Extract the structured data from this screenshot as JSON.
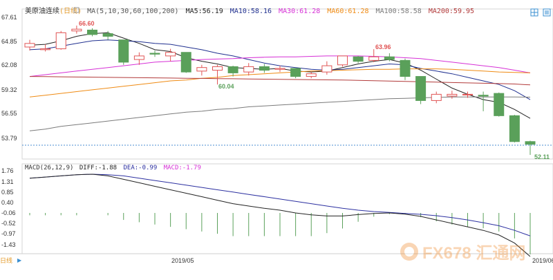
{
  "header": {
    "symbol": "美原油连续",
    "period": "日线",
    "ma_params": "MA(5,10,30,60,100,200)",
    "ma_values": [
      {
        "label": "MA5:56.19",
        "color": "#222222"
      },
      {
        "label": "MA10:58.16",
        "color": "#1f2f8f"
      },
      {
        "label": "MA30:61.28",
        "color": "#d62fd6"
      },
      {
        "label": "MA60:61.28",
        "color": "#ef8a12"
      },
      {
        "label": "MA100:58.58",
        "color": "#7a7a7a"
      },
      {
        "label": "MA200:59.95",
        "color": "#b23a3a"
      }
    ]
  },
  "price_axis": {
    "ticks": [
      "67.61",
      "64.85",
      "62.08",
      "59.32",
      "56.55",
      "53.79"
    ]
  },
  "price_range": [
    51.8,
    67.61
  ],
  "annotations": {
    "high": "66.60",
    "high2": "63.96",
    "low": "60.04",
    "last": "52.11"
  },
  "macd": {
    "label": "MACD(26,12,9)",
    "diff": "DIFF:-1.88",
    "dea": "DEA:-0.99",
    "macd": "MACD:-1.79",
    "ticks": [
      "1.76",
      "1.31",
      "0.85",
      "0.40",
      "-0.06",
      "-0.52",
      "-0.97",
      "-1.43"
    ],
    "range": [
      -1.7,
      1.85
    ]
  },
  "xaxis": {
    "period_tab": "日线",
    "labels": [
      "2019/05",
      "2019/06"
    ]
  },
  "watermark": "FX678 汇通网",
  "colors": {
    "up": "#e05454",
    "down": "#5aa05a",
    "diff": "#222222",
    "dea": "#2b2fa0"
  },
  "chart_data": {
    "type": "candlestick",
    "title": "美原油连续 日线",
    "candles": [
      [
        64.2,
        64.6,
        63.8,
        65.0
      ],
      [
        63.9,
        64.0,
        63.7,
        64.5
      ],
      [
        64.0,
        65.8,
        63.9,
        66.0
      ],
      [
        66.0,
        66.2,
        65.7,
        66.6
      ],
      [
        66.1,
        65.6,
        65.4,
        66.3
      ],
      [
        65.7,
        65.4,
        65.0,
        66.0
      ],
      [
        65.0,
        62.5,
        62.2,
        65.0
      ],
      [
        62.8,
        63.2,
        62.2,
        63.6
      ],
      [
        63.5,
        63.4,
        63.1,
        63.8
      ],
      [
        63.2,
        63.6,
        62.6,
        64.0
      ],
      [
        63.6,
        61.4,
        61.3,
        63.6
      ],
      [
        61.5,
        61.9,
        61.0,
        62.2
      ],
      [
        61.6,
        62.0,
        60.0,
        62.2
      ],
      [
        62.0,
        61.3,
        60.9,
        62.1
      ],
      [
        61.4,
        62.0,
        61.0,
        62.4
      ],
      [
        62.0,
        61.6,
        61.3,
        62.3
      ],
      [
        61.7,
        61.8,
        61.4,
        62.1
      ],
      [
        61.8,
        60.9,
        60.7,
        61.8
      ],
      [
        60.9,
        61.2,
        60.7,
        61.4
      ],
      [
        61.4,
        62.1,
        61.1,
        62.6
      ],
      [
        62.2,
        63.2,
        62.0,
        63.2
      ],
      [
        63.1,
        62.6,
        62.4,
        63.2
      ],
      [
        62.7,
        63.1,
        62.5,
        63.96
      ],
      [
        63.1,
        62.8,
        62.6,
        63.5
      ],
      [
        62.7,
        60.9,
        60.5,
        62.9
      ],
      [
        60.9,
        58.2,
        57.8,
        60.9
      ],
      [
        58.2,
        58.9,
        57.9,
        59.2
      ],
      [
        58.7,
        58.9,
        58.4,
        59.3
      ],
      [
        58.9,
        58.9,
        58.5,
        59.2
      ],
      [
        58.8,
        58.7,
        57.0,
        59.2
      ],
      [
        59.0,
        56.5,
        56.4,
        59.1
      ],
      [
        56.5,
        53.6,
        53.5,
        56.6
      ],
      [
        53.6,
        53.3,
        52.11,
        53.7
      ]
    ],
    "ma": {
      "MA5": [
        64.4,
        64.5,
        64.9,
        65.4,
        65.7,
        65.8,
        65.2,
        64.6,
        63.9,
        63.7,
        63.0,
        62.6,
        62.3,
        61.9,
        61.8,
        61.7,
        61.8,
        61.5,
        61.4,
        61.5,
        61.9,
        62.3,
        62.6,
        62.8,
        62.4,
        61.6,
        60.6,
        59.6,
        58.9,
        58.3,
        58.0,
        57.2,
        56.2
      ],
      "MA10": [
        63.9,
        64.0,
        64.3,
        64.6,
        64.9,
        65.0,
        64.9,
        64.8,
        64.6,
        64.5,
        64.2,
        63.9,
        63.5,
        63.2,
        62.8,
        62.4,
        62.1,
        61.9,
        61.7,
        61.6,
        61.7,
        61.9,
        62.1,
        62.3,
        62.2,
        61.8,
        61.5,
        61.2,
        60.8,
        60.4,
        60.0,
        59.3,
        58.3
      ],
      "MA30": [
        60.9,
        61.1,
        61.3,
        61.5,
        61.7,
        61.9,
        62.1,
        62.3,
        62.5,
        62.6,
        62.7,
        62.8,
        62.85,
        62.9,
        63.0,
        63.05,
        63.1,
        63.1,
        63.15,
        63.2,
        63.2,
        63.2,
        63.15,
        63.1,
        63.0,
        62.9,
        62.7,
        62.5,
        62.3,
        62.1,
        61.9,
        61.6,
        61.3
      ],
      "MA60": [
        58.6,
        58.8,
        59.0,
        59.2,
        59.4,
        59.6,
        59.8,
        60.0,
        60.2,
        60.4,
        60.5,
        60.7,
        60.8,
        61.0,
        61.1,
        61.2,
        61.3,
        61.4,
        61.5,
        61.55,
        61.6,
        61.65,
        61.7,
        61.7,
        61.75,
        61.75,
        61.75,
        61.7,
        61.6,
        61.5,
        61.4,
        61.35,
        61.3
      ],
      "MA100": [
        54.8,
        55.0,
        55.3,
        55.5,
        55.7,
        55.9,
        56.1,
        56.3,
        56.5,
        56.7,
        56.9,
        57.0,
        57.2,
        57.3,
        57.5,
        57.6,
        57.7,
        57.8,
        57.9,
        58.0,
        58.1,
        58.2,
        58.3,
        58.4,
        58.45,
        58.5,
        58.55,
        58.6,
        58.6,
        58.6,
        58.6,
        58.6,
        58.58
      ],
      "MA200": [
        60.9,
        60.88,
        60.86,
        60.84,
        60.82,
        60.8,
        60.78,
        60.76,
        60.74,
        60.72,
        60.7,
        60.68,
        60.66,
        60.64,
        60.62,
        60.6,
        60.58,
        60.56,
        60.54,
        60.52,
        60.5,
        60.46,
        60.42,
        60.38,
        60.34,
        60.3,
        60.26,
        60.22,
        60.18,
        60.14,
        60.1,
        60.05,
        59.95
      ]
    },
    "macd": {
      "diff": [
        1.5,
        1.55,
        1.6,
        1.65,
        1.67,
        1.6,
        1.45,
        1.3,
        1.15,
        1.0,
        0.85,
        0.7,
        0.55,
        0.4,
        0.3,
        0.2,
        0.12,
        0.0,
        -0.08,
        -0.13,
        -0.13,
        -0.07,
        -0.02,
        0.0,
        -0.05,
        -0.15,
        -0.3,
        -0.45,
        -0.6,
        -0.75,
        -0.95,
        -1.3,
        -1.88
      ],
      "dea": [
        1.5,
        1.55,
        1.6,
        1.65,
        1.67,
        1.65,
        1.6,
        1.5,
        1.4,
        1.3,
        1.2,
        1.1,
        1.0,
        0.9,
        0.8,
        0.7,
        0.6,
        0.5,
        0.4,
        0.3,
        0.2,
        0.12,
        0.06,
        0.02,
        -0.02,
        -0.06,
        -0.12,
        -0.2,
        -0.3,
        -0.42,
        -0.55,
        -0.75,
        -0.99
      ],
      "hist": [
        -0.1,
        -0.1,
        -0.1,
        -0.1,
        0.0,
        -0.1,
        -0.3,
        -0.4,
        -0.5,
        -0.6,
        -0.7,
        -0.8,
        -0.9,
        -1.0,
        -1.0,
        -1.0,
        -1.0,
        -1.0,
        -1.0,
        -0.87,
        -0.67,
        -0.38,
        -0.16,
        -0.05,
        -0.06,
        -0.18,
        -0.36,
        -0.5,
        -0.6,
        -0.66,
        -0.8,
        -1.1,
        -1.79
      ]
    },
    "ylim": [
      51.8,
      67.61
    ],
    "xlabel": "",
    "ylabel": ""
  }
}
